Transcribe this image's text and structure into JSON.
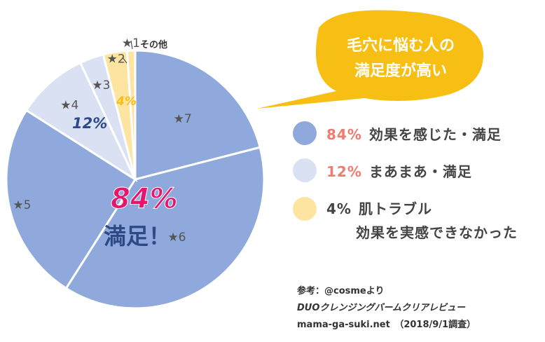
{
  "colors": {
    "satisfied": "#8fa9dd",
    "okay": "#d9e1f2",
    "trouble": "#fde4a0",
    "callout": "#f7be13",
    "pink": "#e6166e",
    "navy": "#2d4a87",
    "star": "#555555",
    "pctLabel": "#f07b6e"
  },
  "callout": {
    "line1": "毛穴に悩む人の",
    "line2": "満足度が高い"
  },
  "center": {
    "percent": "84%",
    "label": "満足！"
  },
  "legend": [
    {
      "pct": "84%",
      "text": "効果を感じた・満足",
      "color": "#8fa9dd"
    },
    {
      "pct": "12%",
      "text": "まあまあ・満足",
      "color": "#d9e1f2"
    },
    {
      "pct": "4%",
      "text": "肌トラブル",
      "text2": "効果を実感できなかった",
      "color": "#fde4a0"
    }
  ],
  "source": {
    "line1": "参考：@cosmeより",
    "line2": "DUOクレンジングバームクリアレビュー",
    "line3": "mama-ga-suki.net　（2018/9/1調査）"
  },
  "chart_data": {
    "type": "pie",
    "slices": [
      {
        "label": "★7",
        "value": 21,
        "group": "satisfied"
      },
      {
        "label": "★6",
        "value": 38,
        "group": "satisfied"
      },
      {
        "label": "★5",
        "value": 25,
        "group": "satisfied"
      },
      {
        "label": "★4",
        "value": 9,
        "group": "okay"
      },
      {
        "label": "★3",
        "value": 3,
        "group": "okay"
      },
      {
        "label": "★2",
        "value": 3,
        "group": "trouble"
      },
      {
        "label": "★1",
        "value": 1,
        "group": "trouble"
      }
    ],
    "slice_labels": {
      "okay_pct": "12%",
      "trouble_pct": "4%",
      "other": "その他"
    }
  }
}
